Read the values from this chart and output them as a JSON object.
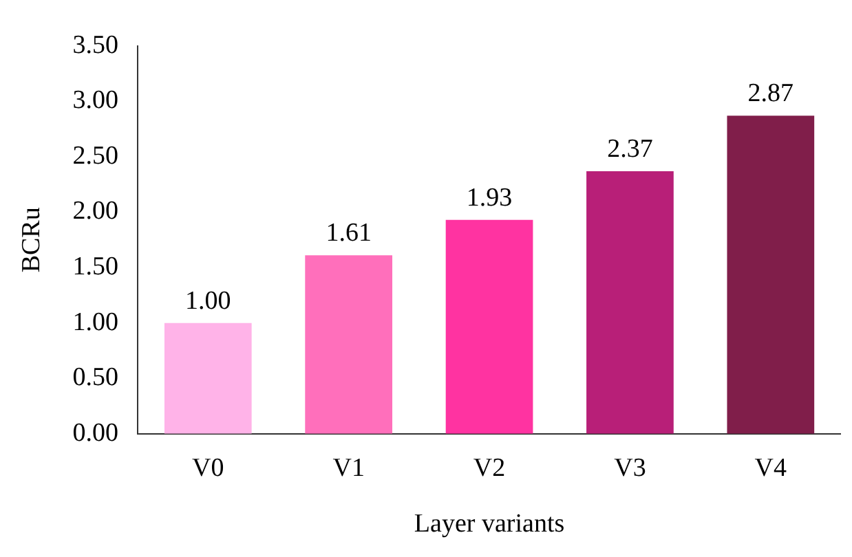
{
  "chart_data": {
    "type": "bar",
    "xlabel": "Layer variants",
    "ylabel": "BCRu",
    "categories": [
      "V0",
      "V1",
      "V2",
      "V3",
      "V4"
    ],
    "values": [
      1.0,
      1.61,
      1.93,
      2.37,
      2.87
    ],
    "colors": [
      "#ffb3e8",
      "#ff6fbb",
      "#ff33a1",
      "#b81f78",
      "#801e4a"
    ],
    "value_labels": [
      "1.00",
      "1.61",
      "1.93",
      "2.37",
      "2.87"
    ],
    "ylim": [
      0,
      3.5
    ],
    "yticks": [
      {
        "value": 0,
        "label": "0.00"
      },
      {
        "value": 0.5,
        "label": "0.50"
      },
      {
        "value": 1,
        "label": "1.00"
      },
      {
        "value": 1.5,
        "label": "1.50"
      },
      {
        "value": 2,
        "label": "2.00"
      },
      {
        "value": 2.5,
        "label": "2.50"
      },
      {
        "value": 3,
        "label": "3.00"
      },
      {
        "value": 3.5,
        "label": "3.50"
      }
    ],
    "grid": false,
    "legend": false
  }
}
